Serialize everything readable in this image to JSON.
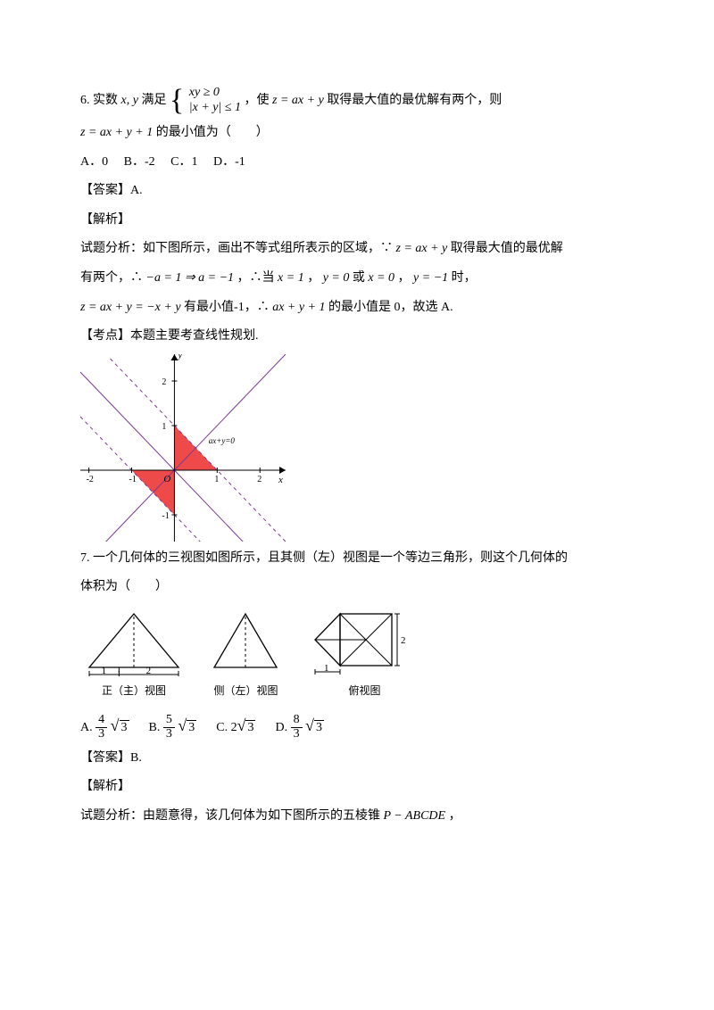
{
  "q6": {
    "num": "6.",
    "pre": "实数",
    "vars": "x, y",
    "sat": "满足",
    "case1": "xy ≥ 0",
    "case2": "|x + y| ≤ 1",
    "mid1": "，使",
    "zexpr": "z = ax + y",
    "mid2": "取得最大值的最优解有两个，则",
    "line2a": "z = ax + y + 1",
    "line2b": "的最小值为（　　）",
    "opts": {
      "A": "A．0",
      "B": "B．-2",
      "C": "C．1",
      "D": "D．-1"
    },
    "ans_label": "【答案】",
    "ans": "A.",
    "jx_label": "【解析】",
    "ana1a": "试题分析：如下图所示，画出不等式组所表示的区域，∵",
    "ana1b": "z = ax + y",
    "ana1c": "取得最大值的最优解",
    "ana2a": "有两个，∴",
    "ana2b": "−a = 1 ⇒ a = −1",
    "ana2c": "，∴当",
    "ana2d": "x = 1",
    "ana2e": "，",
    "ana2f": "y = 0",
    "ana2g": "或",
    "ana2h": "x = 0",
    "ana2i": "，",
    "ana2j": "y = −1",
    "ana2k": "时，",
    "ana3a": "z = ax + y = −x + y",
    "ana3b": "有最小值-1，∴",
    "ana3c": "ax + y + 1",
    "ana3d": "的最小值是 0，故选 A.",
    "kd_label": "【考点】",
    "kd": "本题主要考查线性规划.",
    "graph": {
      "xlim": [
        -2.2,
        2.6
      ],
      "ylim": [
        -1.6,
        2.6
      ],
      "ticks_x": [
        -2,
        -1,
        1,
        2
      ],
      "ticks_y": [
        -1,
        1,
        2
      ],
      "grid": false,
      "axis_color": "#000",
      "region_color": "#ef4a4a",
      "dash_color": "#7a3a8f",
      "solid_color": "#7a3a8f",
      "label_axp": "ax+y=0",
      "y_label": "y",
      "x_label": "x",
      "origin": "O"
    }
  },
  "q7": {
    "num": "7.",
    "text1": "一个几何体的三视图如图所示，且其侧（左）视图是一个等边三角形，则这个几何体的",
    "text2": "体积为（　　）",
    "views": {
      "front_label": "正（主）视图",
      "side_label": "侧（左）视图",
      "top_label": "俯视图",
      "dim1": "1",
      "dim2": "2",
      "dimH": "2",
      "line_color": "#000",
      "dash_int": "3,3"
    },
    "opts": {
      "A": "A.",
      "B": "B.",
      "C": "C.",
      "D": "D."
    },
    "fracs": {
      "A_num": "4",
      "A_den": "3",
      "A_rad": "3",
      "B_num": "5",
      "B_den": "3",
      "B_rad": "3",
      "C_coef": "2",
      "C_rad": "3",
      "D_num": "8",
      "D_den": "3",
      "D_rad": "3"
    },
    "ans_label": "【答案】",
    "ans": "B.",
    "jx_label": "【解析】",
    "ana": "试题分析：由题意得，该几何体为如下图所示的五棱锥",
    "ana_m": "P − ABCDE",
    "ana_end": "，"
  }
}
